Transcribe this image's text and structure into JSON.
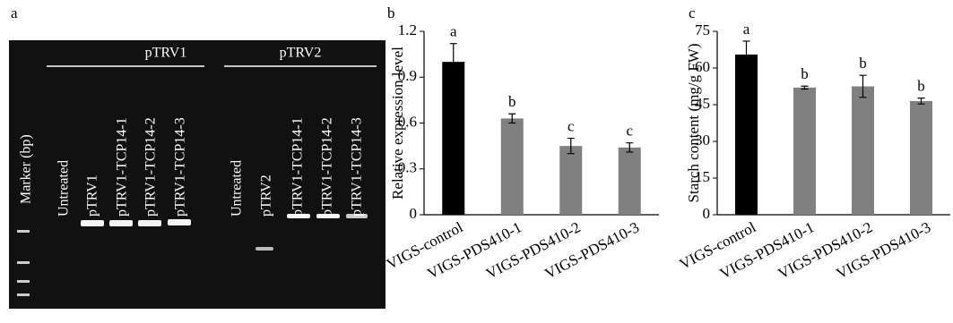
{
  "panels": [
    "a",
    "b",
    "c"
  ],
  "gel": {
    "groups": [
      "pTRV1",
      "pTRV2"
    ],
    "marker_label": "Marker (bp)",
    "lanes": [
      "Untreated",
      "pTRV1",
      "pTRV1-TCP14-1",
      "pTRV1-TCP14-2",
      "pTRV1-TCP14-3",
      "Untreated",
      "pTRV2",
      "pTRV1-TCP14-1",
      "pTRV1-TCP14-2",
      "pTRV1-TCP14-3"
    ]
  },
  "chart_data": [
    {
      "type": "bar",
      "y_label": "Relative expression level",
      "categories": [
        "VIGS-control",
        "VIGS-PDS410-1",
        "VIGS-PDS410-2",
        "VIGS-PDS410-3"
      ],
      "values": [
        1.0,
        0.63,
        0.45,
        0.44
      ],
      "errors": [
        0.12,
        0.03,
        0.05,
        0.03
      ],
      "annotations": [
        "a",
        "b",
        "c",
        "c"
      ],
      "colors": [
        "#000000",
        "#808080",
        "#808080",
        "#808080"
      ],
      "ylim": [
        0,
        1.2
      ],
      "yticks": [
        0,
        0.3,
        0.6,
        0.9,
        1.2
      ]
    },
    {
      "type": "bar",
      "y_label": "Starch content (mg/g FW)",
      "categories": [
        "VIGS-control",
        "VIGS-PDS410-1",
        "VIGS-PDS410-2",
        "VIGS-PDS410-3"
      ],
      "values": [
        65.5,
        52,
        52.5,
        46.5
      ],
      "errors": [
        5.5,
        0.6,
        4.5,
        1.2
      ],
      "annotations": [
        "a",
        "b",
        "b",
        "b"
      ],
      "colors": [
        "#000000",
        "#808080",
        "#808080",
        "#808080"
      ],
      "ylim": [
        0,
        75
      ],
      "yticks": [
        0,
        15,
        30,
        45,
        60,
        75
      ]
    }
  ]
}
